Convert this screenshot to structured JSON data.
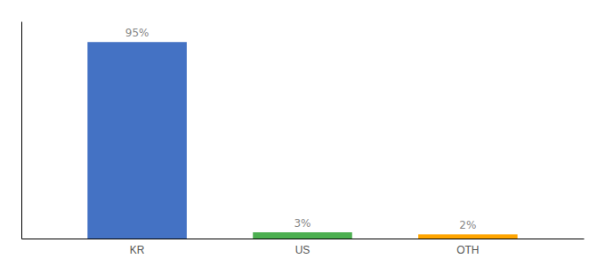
{
  "chart_data": {
    "type": "bar",
    "categories": [
      "KR",
      "US",
      "OTH"
    ],
    "values": [
      95,
      3,
      2
    ],
    "value_labels": [
      "95%",
      "3%",
      "2%"
    ],
    "colors": [
      "#4472c4",
      "#4caf50",
      "#ffa500"
    ],
    "ylim": [
      0,
      105
    ],
    "grid": false,
    "data_labels": true,
    "tick_labels": "x"
  }
}
